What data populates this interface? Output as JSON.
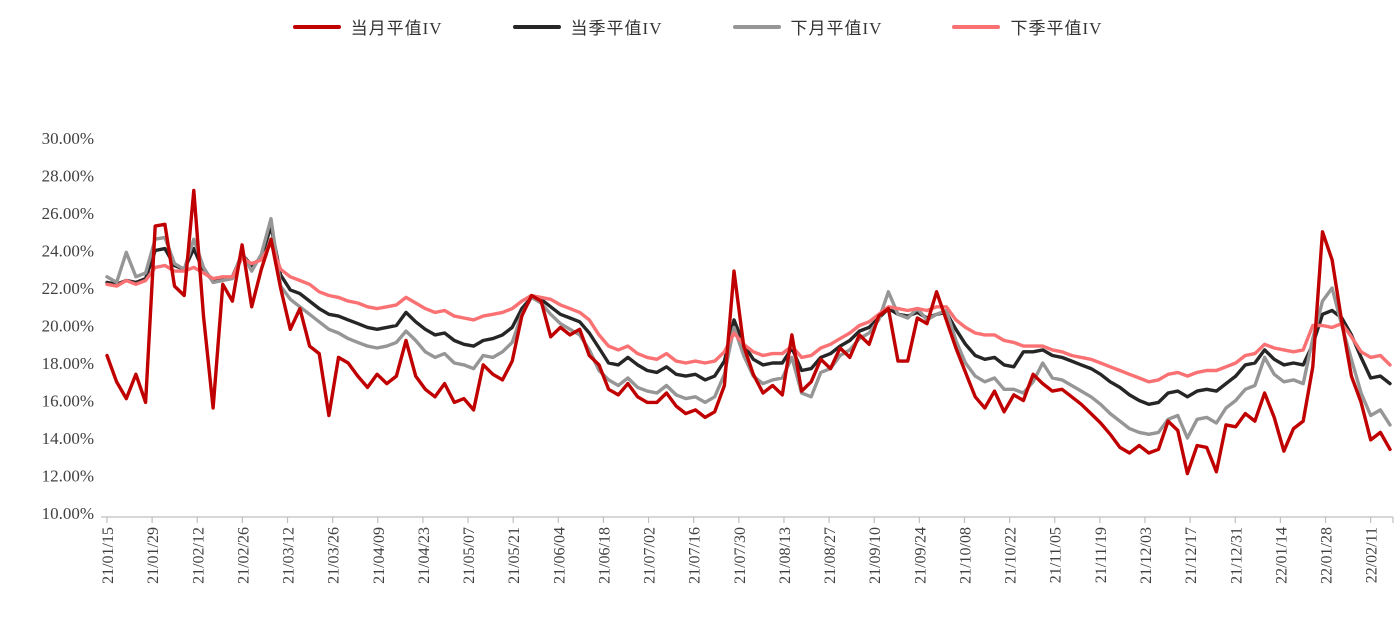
{
  "chart_data": {
    "type": "line",
    "title": "",
    "legend_position": "top",
    "grid": false,
    "y_unit": "%",
    "ylim": [
      10,
      30
    ],
    "y_tick_labels": [
      "30.00%",
      "28.00%",
      "26.00%",
      "24.00%",
      "22.00%",
      "20.00%",
      "18.00%",
      "16.00%",
      "14.00%",
      "12.00%",
      "10.00%"
    ],
    "y_tick_values": [
      30,
      28,
      26,
      24,
      22,
      20,
      18,
      16,
      14,
      12,
      10
    ],
    "x_tick_labels": [
      "21/01/15",
      "21/01/29",
      "21/02/12",
      "21/02/26",
      "21/03/12",
      "21/03/26",
      "21/04/09",
      "21/04/23",
      "21/05/07",
      "21/05/21",
      "21/06/04",
      "21/06/18",
      "21/07/02",
      "21/07/16",
      "21/07/30",
      "21/08/13",
      "21/08/27",
      "21/09/10",
      "21/09/24",
      "21/10/08",
      "21/10/22",
      "21/11/05",
      "21/11/19",
      "21/12/03",
      "21/12/17",
      "21/12/31",
      "22/01/14",
      "22/01/28",
      "22/02/11"
    ],
    "axis_color": "#BFBFBF",
    "series": [
      {
        "name": "当月平值IV",
        "color": "#C00000",
        "values": [
          18.4,
          17.0,
          16.1,
          17.4,
          15.9,
          25.3,
          25.4,
          22.1,
          21.6,
          27.2,
          20.5,
          15.6,
          22.2,
          21.3,
          24.3,
          21.0,
          23.0,
          24.6,
          22.0,
          19.8,
          20.9,
          18.9,
          18.5,
          15.2,
          18.3,
          18.0,
          17.3,
          16.7,
          17.4,
          16.9,
          17.3,
          19.2,
          17.3,
          16.6,
          16.2,
          16.9,
          15.9,
          16.1,
          15.5,
          17.9,
          17.4,
          17.1,
          18.1,
          20.5,
          21.6,
          21.3,
          19.4,
          19.9,
          19.5,
          19.8,
          18.4,
          17.9,
          16.6,
          16.3,
          16.9,
          16.2,
          15.9,
          15.9,
          16.4,
          15.7,
          15.3,
          15.5,
          15.1,
          15.4,
          16.8,
          22.9,
          18.9,
          17.4,
          16.4,
          16.8,
          16.3,
          19.5,
          16.5,
          17.0,
          18.2,
          17.7,
          18.8,
          18.3,
          19.5,
          19.0,
          20.5,
          20.9,
          18.1,
          18.1,
          20.4,
          20.1,
          21.8,
          20.3,
          18.8,
          17.5,
          16.2,
          15.6,
          16.5,
          15.4,
          16.3,
          16.0,
          17.4,
          16.9,
          16.5,
          16.6,
          16.2,
          15.8,
          15.3,
          14.8,
          14.2,
          13.5,
          13.2,
          13.6,
          13.2,
          13.4,
          14.9,
          14.4,
          12.1,
          13.6,
          13.5,
          12.2,
          14.7,
          14.6,
          15.3,
          14.9,
          16.4,
          15.1,
          13.3,
          14.5,
          14.9,
          17.8,
          25.0,
          23.5,
          20.2,
          17.3,
          15.9,
          13.9,
          14.3,
          13.4
        ]
      },
      {
        "name": "当季平值IV",
        "color": "#262626",
        "values": [
          22.3,
          22.2,
          22.4,
          22.3,
          22.5,
          24.0,
          24.1,
          23.2,
          23.0,
          24.1,
          22.9,
          22.4,
          22.5,
          22.6,
          23.8,
          23.2,
          23.6,
          25.3,
          22.7,
          21.9,
          21.7,
          21.3,
          20.9,
          20.6,
          20.5,
          20.3,
          20.1,
          19.9,
          19.8,
          19.9,
          20.0,
          20.7,
          20.2,
          19.8,
          19.5,
          19.6,
          19.2,
          19.0,
          18.9,
          19.2,
          19.3,
          19.5,
          19.9,
          20.9,
          21.5,
          21.4,
          21.0,
          20.6,
          20.4,
          20.2,
          19.6,
          18.8,
          18.0,
          17.9,
          18.3,
          17.9,
          17.6,
          17.5,
          17.8,
          17.4,
          17.3,
          17.4,
          17.1,
          17.3,
          18.1,
          20.3,
          19.0,
          18.2,
          17.9,
          18.0,
          18.0,
          18.8,
          17.6,
          17.7,
          18.3,
          18.5,
          18.9,
          19.2,
          19.7,
          19.9,
          20.4,
          20.9,
          20.6,
          20.5,
          20.7,
          20.4,
          20.6,
          20.7,
          19.8,
          19.0,
          18.4,
          18.2,
          18.3,
          17.9,
          17.8,
          18.6,
          18.6,
          18.7,
          18.4,
          18.3,
          18.1,
          17.9,
          17.7,
          17.4,
          17.0,
          16.7,
          16.3,
          16.0,
          15.8,
          15.9,
          16.4,
          16.5,
          16.2,
          16.5,
          16.6,
          16.5,
          16.9,
          17.3,
          17.9,
          18.0,
          18.7,
          18.2,
          17.9,
          18.0,
          17.9,
          19.0,
          20.6,
          20.8,
          20.4,
          19.5,
          18.3,
          17.2,
          17.3,
          16.9
        ]
      },
      {
        "name": "下月平值IV",
        "color": "#969696",
        "values": [
          22.6,
          22.3,
          23.9,
          22.6,
          22.8,
          24.6,
          24.7,
          23.3,
          23.0,
          24.6,
          23.1,
          22.3,
          22.4,
          22.5,
          23.9,
          22.9,
          23.8,
          25.7,
          22.1,
          21.4,
          21.0,
          20.6,
          20.2,
          19.8,
          19.6,
          19.3,
          19.1,
          18.9,
          18.8,
          18.9,
          19.1,
          19.7,
          19.2,
          18.6,
          18.3,
          18.5,
          18.0,
          17.9,
          17.7,
          18.4,
          18.3,
          18.6,
          19.1,
          20.6,
          21.5,
          21.2,
          20.6,
          20.1,
          19.8,
          19.5,
          18.7,
          17.6,
          17.1,
          16.8,
          17.2,
          16.7,
          16.5,
          16.4,
          16.8,
          16.3,
          16.1,
          16.2,
          15.9,
          16.2,
          17.4,
          19.9,
          18.4,
          17.3,
          16.9,
          17.1,
          17.2,
          18.3,
          16.4,
          16.2,
          17.5,
          17.7,
          18.4,
          18.7,
          19.3,
          19.6,
          20.3,
          21.8,
          20.6,
          20.4,
          20.9,
          20.3,
          20.6,
          20.8,
          19.2,
          18.0,
          17.3,
          17.0,
          17.2,
          16.6,
          16.6,
          16.4,
          17.0,
          18.0,
          17.2,
          17.1,
          16.8,
          16.5,
          16.2,
          15.8,
          15.3,
          14.9,
          14.5,
          14.3,
          14.2,
          14.3,
          15.0,
          15.2,
          14.0,
          15.0,
          15.1,
          14.8,
          15.6,
          16.0,
          16.6,
          16.8,
          18.3,
          17.4,
          17.0,
          17.1,
          16.9,
          19.3,
          21.3,
          22.0,
          20.0,
          18.2,
          16.4,
          15.2,
          15.5,
          14.7
        ]
      },
      {
        "name": "下季平值IV",
        "color": "#FA7173",
        "values": [
          22.2,
          22.1,
          22.4,
          22.2,
          22.4,
          23.1,
          23.2,
          22.9,
          22.9,
          23.1,
          22.8,
          22.5,
          22.6,
          22.6,
          23.6,
          23.3,
          23.5,
          24.4,
          23.0,
          22.6,
          22.4,
          22.2,
          21.8,
          21.6,
          21.5,
          21.3,
          21.2,
          21.0,
          20.9,
          21.0,
          21.1,
          21.5,
          21.2,
          20.9,
          20.7,
          20.8,
          20.5,
          20.4,
          20.3,
          20.5,
          20.6,
          20.7,
          20.9,
          21.3,
          21.6,
          21.5,
          21.4,
          21.1,
          20.9,
          20.7,
          20.3,
          19.5,
          18.9,
          18.7,
          18.9,
          18.5,
          18.3,
          18.2,
          18.5,
          18.1,
          18.0,
          18.1,
          18.0,
          18.1,
          18.6,
          19.6,
          19.0,
          18.6,
          18.4,
          18.5,
          18.5,
          18.9,
          18.3,
          18.4,
          18.8,
          19.0,
          19.3,
          19.6,
          20.0,
          20.2,
          20.6,
          21.0,
          20.9,
          20.8,
          20.9,
          20.8,
          21.0,
          21.0,
          20.3,
          19.9,
          19.6,
          19.5,
          19.5,
          19.2,
          19.1,
          18.9,
          18.9,
          18.9,
          18.7,
          18.6,
          18.4,
          18.3,
          18.2,
          18.0,
          17.8,
          17.6,
          17.4,
          17.2,
          17.0,
          17.1,
          17.4,
          17.5,
          17.3,
          17.5,
          17.6,
          17.6,
          17.8,
          18.0,
          18.4,
          18.5,
          19.0,
          18.8,
          18.7,
          18.6,
          18.7,
          20.0,
          20.0,
          19.9,
          20.1,
          19.4,
          18.6,
          18.3,
          18.4,
          17.9
        ]
      }
    ]
  }
}
